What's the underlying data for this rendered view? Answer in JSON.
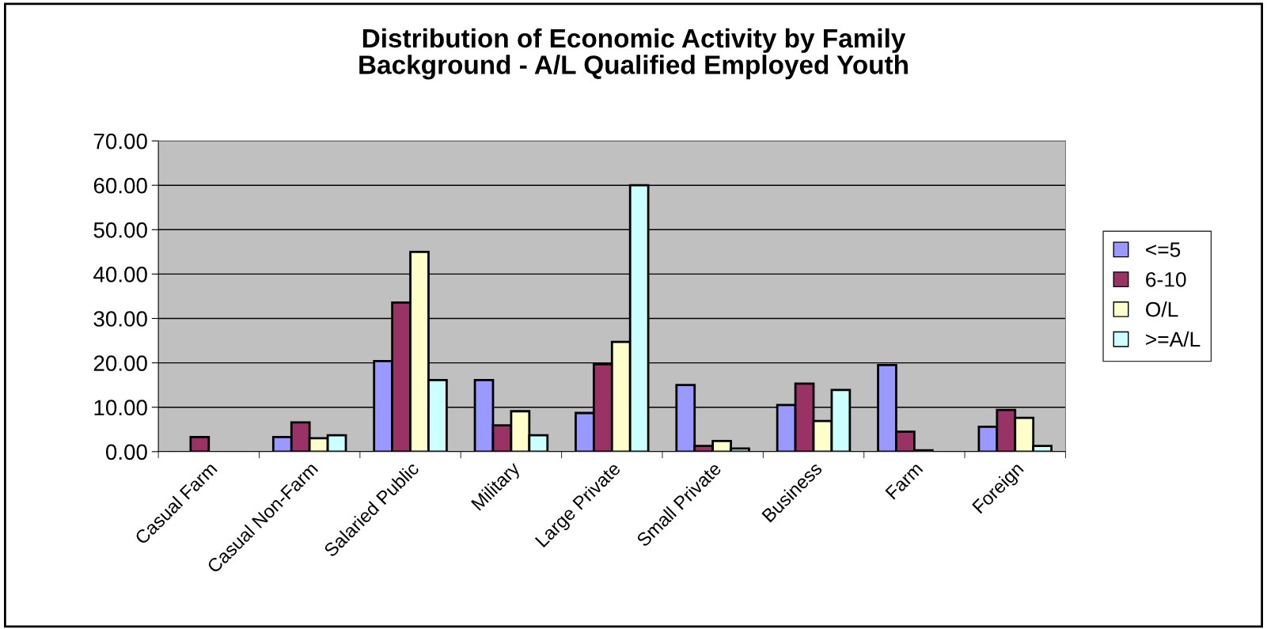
{
  "chart_data": {
    "type": "bar",
    "title": "Distribution of Economic Activity by Family\nBackground - A/L Qualified Employed Youth",
    "categories": [
      "Casual Farm",
      "Casual Non-Farm",
      "Salaried Public",
      "Military",
      "Large Private",
      "Small Private",
      "Business",
      "Farm",
      "Foreign"
    ],
    "series": [
      {
        "name": "<=5",
        "color": "#9999ff",
        "values": [
          null,
          3.3,
          20.4,
          16.1,
          8.7,
          15.0,
          10.5,
          19.5,
          5.6
        ]
      },
      {
        "name": "6-10",
        "color": "#993366",
        "values": [
          3.3,
          6.6,
          33.6,
          5.9,
          19.7,
          1.3,
          15.3,
          4.5,
          9.4
        ]
      },
      {
        "name": "O/L",
        "color": "#ffffcc",
        "values": [
          null,
          3.0,
          45.0,
          9.1,
          24.7,
          2.4,
          6.9,
          0.3,
          7.6
        ]
      },
      {
        "name": ">=A/L",
        "color": "#ccffff",
        "values": [
          null,
          3.7,
          16.1,
          3.7,
          60.0,
          0.7,
          13.9,
          null,
          1.3
        ]
      }
    ],
    "ylim": [
      0,
      70
    ],
    "yticks": [
      {
        "value": 0,
        "label": "0.00"
      },
      {
        "value": 10,
        "label": "10.00"
      },
      {
        "value": 20,
        "label": "20.00"
      },
      {
        "value": 30,
        "label": "30.00"
      },
      {
        "value": 40,
        "label": "40.00"
      },
      {
        "value": 50,
        "label": "50.00"
      },
      {
        "value": 60,
        "label": "60.00"
      },
      {
        "value": 70,
        "label": "70.00"
      }
    ],
    "grid": "y",
    "legend": "right"
  }
}
